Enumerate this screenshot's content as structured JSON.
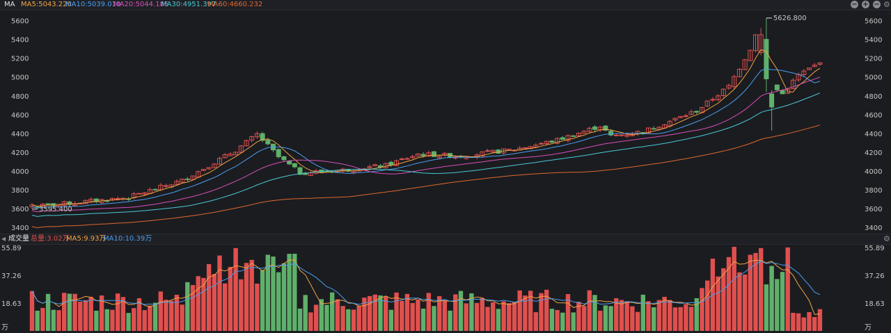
{
  "top_bar": {
    "title": "MA",
    "ma5": "MA5:5043.220",
    "ma10": "MA10:5039.010",
    "ma20": "MA20:5044.185",
    "ma30": "MA30:4951.397",
    "ma60": "MA60:4660.232"
  },
  "volume_bar": {
    "title": "成交量",
    "total": "总量:3.02万",
    "ma5": "MA5:9.93万",
    "ma10": "MA10:10.39万"
  },
  "colors": {
    "up": "#e0504e",
    "down": "#5fb06a",
    "ma5": "#f0a442",
    "ma10": "#4a9ff0",
    "ma20": "#d94fb8",
    "ma30": "#49c9d6",
    "ma60": "#e0682e"
  },
  "chart_data": [
    {
      "type": "candlestick",
      "ylim": [
        3350,
        5700
      ],
      "y_ticks": [
        "5600",
        "5400",
        "5200",
        "5000",
        "4800",
        "4600",
        "4400",
        "4200",
        "4000",
        "3800",
        "3600",
        "3400"
      ],
      "annotations": {
        "high_label": "5626.800",
        "low_label": "3595.400"
      },
      "grid": false
    },
    {
      "type": "bar",
      "ylim": [
        0,
        55.89
      ],
      "y_ticks": [
        "55.89",
        "37.26",
        "18.63"
      ],
      "unit_label": "万",
      "grid": false
    }
  ]
}
